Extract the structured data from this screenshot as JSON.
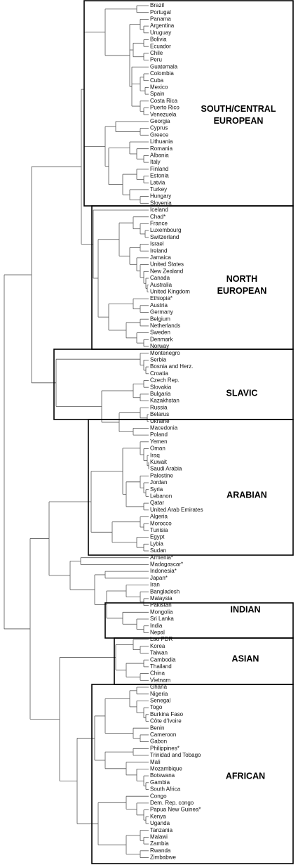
{
  "leaves": [
    "Brazil",
    "Portugal",
    "Panama",
    "Argentina",
    "Uruguay",
    "Bolivia",
    "Ecuador",
    "Chile",
    "Peru",
    "Guatemala",
    "Colombia",
    "Cuba",
    "Mexico",
    "Spain",
    "Costa Rica",
    "Puerto Rico",
    "Venezuela",
    "Georgia",
    "Cyprus",
    "Greece",
    "Lithuania",
    "Romania",
    "Albania",
    "Italy",
    "Finland",
    "Estonia",
    "Latvia",
    "Turkey",
    "Hungary",
    "Slovenia",
    "Iceland",
    "Chad*",
    "France",
    "Luxembourg",
    "Switzerland",
    "Israel",
    "Ireland",
    "Jamaica",
    "United States",
    "New Zealand",
    "Canada",
    "Australia",
    "United Kingdom",
    "Ethiopia*",
    "Austria",
    "Germany",
    "Belgium",
    "Netherlands",
    "Sweden",
    "Denmark",
    "Norway",
    "Montenegro",
    "Serbia",
    "Bosnia and Herz.",
    "Croatia",
    "Czech Rep.",
    "Slovakia",
    "Bulgaria",
    "Kazakhstan",
    "Russia",
    "Belarus",
    "Ukraine",
    "Macedonia",
    "Poland",
    "Yemen",
    "Oman",
    "Iraq",
    "Kuwait",
    "Saudi Arabia",
    "Palestine",
    "Jordan",
    "Syria",
    "Lebanon",
    "Qatar",
    "United Arab Emirates",
    "Algeria",
    "Morocco",
    "Tunisia",
    "Egypt",
    "Lybia",
    "Sudan",
    "Armenia*",
    "Madagascar*",
    "Indonesia*",
    "Japan*",
    "Iran",
    "Bangladesh",
    "Malaysia",
    "Pakistan",
    "Mongolia",
    "Sri Lanka",
    "India",
    "Nepal",
    "Lao PDR",
    "Korea",
    "Taiwan",
    "Cambodia",
    "Thailand",
    "China",
    "Vietnam",
    "Ghana",
    "Nigeria",
    "Senegal",
    "Togo",
    "Burkina Faso",
    "Côte d'Ivoire",
    "Benin",
    "Cameroon",
    "Gabon",
    "Philippines*",
    "Trinidad and Tobago",
    "Mali",
    "Mozambique",
    "Botswana",
    "Gambia",
    "South Africa",
    "Congo",
    "Dem. Rep. congo",
    "Papua New Guinea*",
    "Kenya",
    "Uganda",
    "Tanzania",
    "Malawi",
    "Zambia",
    "Rwanda",
    "Zimbabwe"
  ],
  "clusters": [
    {
      "lines": [
        "SOUTH/CENTRAL",
        "EUROPEAN"
      ]
    },
    {
      "lines": [
        "NORTH",
        "EUROPEAN"
      ]
    },
    {
      "lines": [
        "SLAVIC"
      ]
    },
    {
      "lines": [
        "ARABIAN"
      ]
    },
    {
      "lines": [
        "INDIAN"
      ]
    },
    {
      "lines": [
        "ASIAN"
      ]
    },
    {
      "lines": [
        "AFRICAN"
      ]
    }
  ]
}
